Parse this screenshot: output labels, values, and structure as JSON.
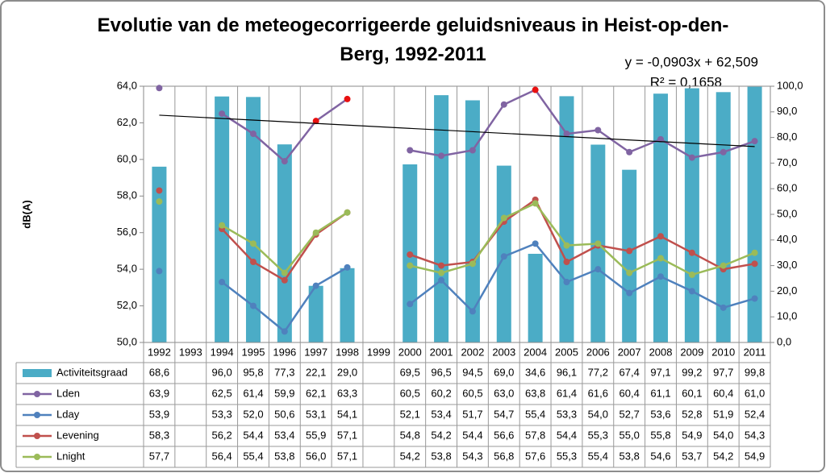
{
  "chart_data": {
    "type": "bar-line-table",
    "title": "Evolutie van de meteogecorrigeerde geluidsniveaus in Heist-op-den-Berg, 1992-2011",
    "y_label": "dB(A)",
    "categories": [
      "1992",
      "1993",
      "1994",
      "1995",
      "1996",
      "1997",
      "1998",
      "1999",
      "2000",
      "2001",
      "2002",
      "2003",
      "2004",
      "2005",
      "2006",
      "2007",
      "2008",
      "2009",
      "2010",
      "2011"
    ],
    "ylim": [
      50,
      64
    ],
    "yticks": [
      {
        "value": 50,
        "label": "50,0"
      },
      {
        "value": 52,
        "label": "52,0"
      },
      {
        "value": 54,
        "label": "54,0"
      },
      {
        "value": 56,
        "label": "56,0"
      },
      {
        "value": 58,
        "label": "58,0"
      },
      {
        "value": 60,
        "label": "60,0"
      },
      {
        "value": 62,
        "label": "62,0"
      },
      {
        "value": 64,
        "label": "64,0"
      }
    ],
    "y2lim": [
      0,
      100
    ],
    "y2ticks": [
      {
        "value": 0,
        "label": "0,0"
      },
      {
        "value": 10,
        "label": "10,0"
      },
      {
        "value": 20,
        "label": "20,0"
      },
      {
        "value": 30,
        "label": "30,0"
      },
      {
        "value": 40,
        "label": "40,0"
      },
      {
        "value": 50,
        "label": "50,0"
      },
      {
        "value": 60,
        "label": "60,0"
      },
      {
        "value": 70,
        "label": "70,0"
      },
      {
        "value": 80,
        "label": "80,0"
      },
      {
        "value": 90,
        "label": "90,0"
      },
      {
        "value": 100,
        "label": "100,0"
      }
    ],
    "series": [
      {
        "name": "Activiteitsgraad",
        "type": "bar",
        "axis": "y2",
        "color": "#4bacc6",
        "values": [
          68.6,
          null,
          96.0,
          95.8,
          77.3,
          22.1,
          29.0,
          null,
          69.5,
          96.5,
          94.5,
          69.0,
          34.6,
          96.1,
          77.2,
          67.4,
          97.1,
          99.2,
          97.7,
          99.8
        ],
        "value_labels": [
          "68,6",
          null,
          "96,0",
          "95,8",
          "77,3",
          "22,1",
          "29,0",
          null,
          "69,5",
          "96,5",
          "94,5",
          "69,0",
          "34,6",
          "96,1",
          "77,2",
          "67,4",
          "97,1",
          "99,2",
          "97,7",
          "99,8"
        ]
      },
      {
        "name": "Lden",
        "type": "line",
        "color": "#8064a2",
        "highlight_color": "#e81010",
        "highlighted": [
          5,
          6,
          12
        ],
        "values": [
          63.9,
          null,
          62.5,
          61.4,
          59.9,
          62.1,
          63.3,
          null,
          60.5,
          60.2,
          60.5,
          63.0,
          63.8,
          61.4,
          61.6,
          60.4,
          61.1,
          60.1,
          60.4,
          61.0
        ],
        "value_labels": [
          "63,9",
          null,
          "62,5",
          "61,4",
          "59,9",
          "62,1",
          "63,3",
          null,
          "60,5",
          "60,2",
          "60,5",
          "63,0",
          "63,8",
          "61,4",
          "61,6",
          "60,4",
          "61,1",
          "60,1",
          "60,4",
          "61,0"
        ]
      },
      {
        "name": "Lday",
        "type": "line",
        "color": "#4f81bd",
        "values": [
          53.9,
          null,
          53.3,
          52.0,
          50.6,
          53.1,
          54.1,
          null,
          52.1,
          53.4,
          51.7,
          54.7,
          55.4,
          53.3,
          54.0,
          52.7,
          53.6,
          52.8,
          51.9,
          52.4
        ],
        "value_labels": [
          "53,9",
          null,
          "53,3",
          "52,0",
          "50,6",
          "53,1",
          "54,1",
          null,
          "52,1",
          "53,4",
          "51,7",
          "54,7",
          "55,4",
          "53,3",
          "54,0",
          "52,7",
          "53,6",
          "52,8",
          "51,9",
          "52,4"
        ]
      },
      {
        "name": "Levening",
        "type": "line",
        "color": "#c0504d",
        "values": [
          58.3,
          null,
          56.2,
          54.4,
          53.4,
          55.9,
          57.1,
          null,
          54.8,
          54.2,
          54.4,
          56.6,
          57.8,
          54.4,
          55.3,
          55.0,
          55.8,
          54.9,
          54.0,
          54.3
        ],
        "value_labels": [
          "58,3",
          null,
          "56,2",
          "54,4",
          "53,4",
          "55,9",
          "57,1",
          null,
          "54,8",
          "54,2",
          "54,4",
          "56,6",
          "57,8",
          "54,4",
          "55,3",
          "55,0",
          "55,8",
          "54,9",
          "54,0",
          "54,3"
        ]
      },
      {
        "name": "Lnight",
        "type": "line",
        "color": "#9bbb59",
        "values": [
          57.7,
          null,
          56.4,
          55.4,
          53.8,
          56.0,
          57.1,
          null,
          54.2,
          53.8,
          54.3,
          56.8,
          57.6,
          55.3,
          55.4,
          53.8,
          54.6,
          53.7,
          54.2,
          54.9
        ],
        "value_labels": [
          "57,7",
          null,
          "56,4",
          "55,4",
          "53,8",
          "56,0",
          "57,1",
          null,
          "54,2",
          "53,8",
          "54,3",
          "56,8",
          "57,6",
          "55,3",
          "55,4",
          "53,8",
          "54,6",
          "53,7",
          "54,2",
          "54,9"
        ]
      }
    ],
    "trendline": {
      "slope": -0.0903,
      "intercept": 62.509,
      "color": "#000000",
      "label": "y = -0,0903x + 62,509",
      "r2_label": "R² = 0,1658"
    }
  }
}
